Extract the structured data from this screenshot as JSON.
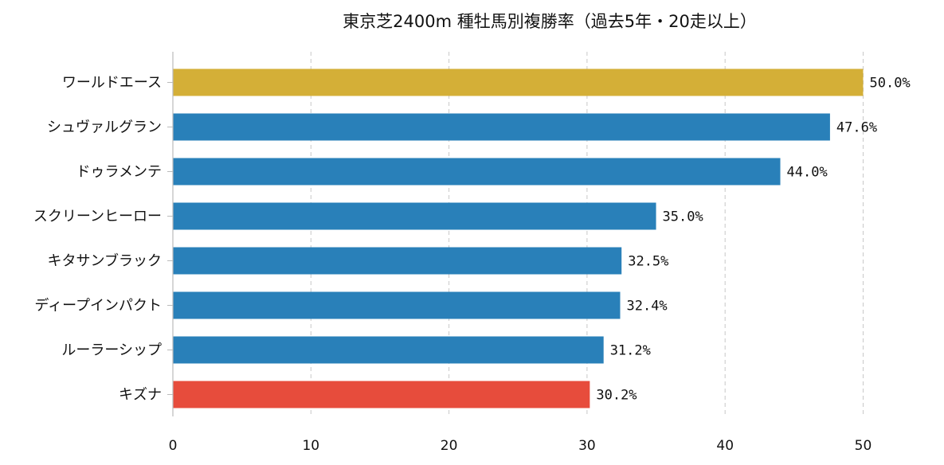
{
  "chart_data": {
    "type": "bar",
    "orientation": "horizontal",
    "title": "東京芝2400m 種牡馬別複勝率（過去5年・20走以上）",
    "xlabel": "",
    "ylabel": "",
    "categories": [
      "ワールドエース",
      "シュヴァルグラン",
      "ドゥラメンテ",
      "スクリーンヒーロー",
      "キタサンブラック",
      "ディープインパクト",
      "ルーラーシップ",
      "キズナ"
    ],
    "values": [
      50.0,
      47.6,
      44.0,
      35.0,
      32.5,
      32.4,
      31.2,
      30.2
    ],
    "value_labels": [
      "50.0%",
      "47.6%",
      "44.0%",
      "35.0%",
      "32.5%",
      "32.4%",
      "31.2%",
      "30.2%"
    ],
    "colors": [
      "#d4af37",
      "#2980b9",
      "#2980b9",
      "#2980b9",
      "#2980b9",
      "#2980b9",
      "#2980b9",
      "#e74c3c"
    ],
    "xlim": [
      0,
      55
    ],
    "xticks": [
      0,
      10,
      20,
      30,
      40,
      50
    ],
    "grid": "x-dashed",
    "legend": "none"
  }
}
